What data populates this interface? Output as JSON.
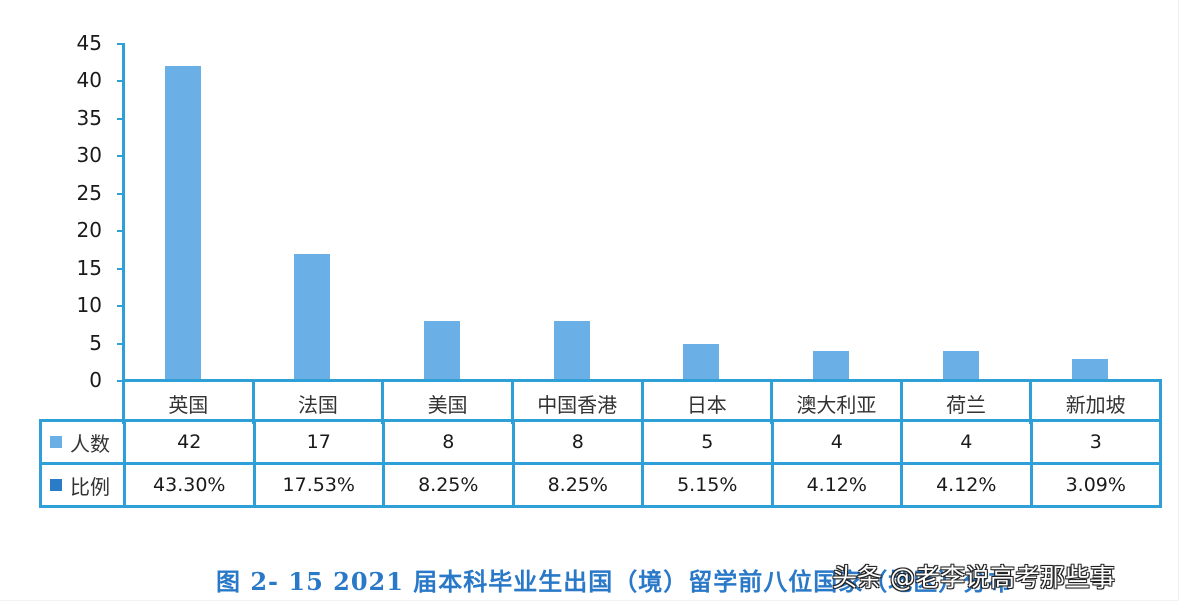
{
  "chart_data": {
    "type": "bar",
    "title": "图 2-15 2021 届本科毕业生出国（境）留学前八位国家（地区）分布",
    "xlabel": "",
    "ylabel": "",
    "ylim": [
      0,
      45
    ],
    "yticks": [
      0,
      5,
      10,
      15,
      20,
      25,
      30,
      35,
      40,
      45
    ],
    "grid": false,
    "legend_position": "data-table-left",
    "categories": [
      "英国",
      "法国",
      "美国",
      "中国香港",
      "日本",
      "澳大利亚",
      "荷兰",
      "新加坡"
    ],
    "series": [
      {
        "name": "人数",
        "values": [
          42,
          17,
          8,
          8,
          5,
          4,
          4,
          3
        ],
        "color": "#6aafe6"
      },
      {
        "name": "比例",
        "values": [
          "43.30%",
          "17.53%",
          "8.25%",
          "8.25%",
          "5.15%",
          "4.12%",
          "4.12%",
          "3.09%"
        ],
        "color": "#2a7cc7"
      }
    ]
  },
  "axis": {
    "y_labels": [
      "45",
      "40",
      "35",
      "30",
      "25",
      "20",
      "15",
      "10",
      "5",
      "0"
    ]
  },
  "table": {
    "categories": [
      "英国",
      "法国",
      "美国",
      "中国香港",
      "日本",
      "澳大利亚",
      "荷兰",
      "新加坡"
    ],
    "rows": [
      {
        "legend": "人数",
        "swatch_color": "#6aafe6",
        "cells": [
          "42",
          "17",
          "8",
          "8",
          "5",
          "4",
          "4",
          "3"
        ]
      },
      {
        "legend": "比例",
        "swatch_color": "#2a7cc7",
        "cells": [
          "43.30%",
          "17.53%",
          "8.25%",
          "8.25%",
          "5.15%",
          "4.12%",
          "4.12%",
          "3.09%"
        ]
      }
    ]
  },
  "caption": "图 2- 15  2021 届本科毕业生出国（境）留学前八位国家（地区）分布",
  "watermark": "头条 @老李说高考那些事",
  "colors": {
    "axis": "#2f9fd8",
    "bar": "#6aafe6",
    "caption": "#2a78c8"
  }
}
